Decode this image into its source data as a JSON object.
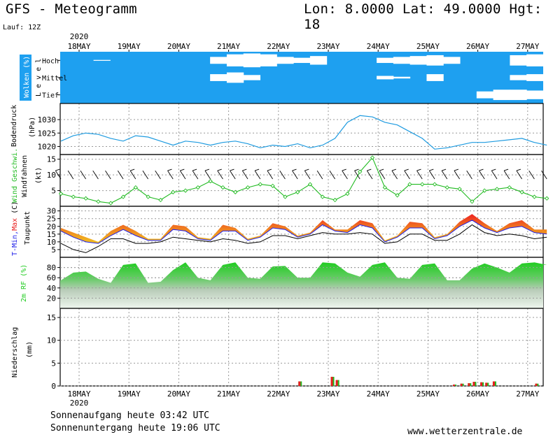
{
  "header": {
    "title": "GFS - Meteogramm",
    "coords": "Lon: 8.0000  Lat: 49.0000  Hgt: 18",
    "run": "Lauf: 12Z",
    "year_top": "2020",
    "year_bottom": "2020"
  },
  "footer": {
    "sunrise": "Sonnenaufgang heute 03:42 UTC",
    "sunset": "Sonnenuntergang heute 19:06 UTC",
    "source": "www.wetterzentrale.de"
  },
  "colors": {
    "cloud": "#1ea0f0",
    "pressure": "#1e9be0",
    "wind": "#22bb22",
    "tmax_red": "#e81e1e",
    "tmin_blue": "#1e1ee8",
    "rh_green": "#22cc22"
  },
  "chart_data": [
    {
      "type": "area",
      "id": "clouds",
      "ylabel_parts": [
        "Wolken (%)",
        "L e v e l"
      ],
      "level_labels": [
        "Hoch",
        "Mittel",
        "Tief"
      ],
      "x_tick_labels": [
        "18MAY",
        "19MAY",
        "20MAY",
        "21MAY",
        "22MAY",
        "23MAY",
        "24MAY",
        "25MAY",
        "26MAY",
        "27MAY"
      ],
      "levels": [
        "high",
        "mid",
        "low"
      ],
      "note": "",
      "cover_high": [
        100,
        100,
        95,
        100,
        100,
        100,
        100,
        100,
        100,
        60,
        30,
        20,
        30,
        60,
        70,
        50,
        100,
        100,
        100,
        70,
        60,
        50,
        40,
        60,
        100,
        100,
        100,
        40,
        30
      ],
      "cover_mid": [
        100,
        100,
        100,
        100,
        100,
        100,
        100,
        100,
        100,
        60,
        40,
        70,
        100,
        100,
        100,
        100,
        100,
        100,
        100,
        80,
        90,
        100,
        60,
        100,
        100,
        100,
        100,
        70,
        60
      ],
      "cover_low": [
        100,
        100,
        100,
        100,
        100,
        100,
        100,
        100,
        100,
        100,
        100,
        100,
        100,
        100,
        100,
        100,
        100,
        100,
        100,
        100,
        100,
        100,
        100,
        100,
        100,
        60,
        40,
        40,
        50
      ]
    },
    {
      "type": "line",
      "id": "pressure",
      "ylabel_parts": [
        "Bodendruck",
        "(hPa)"
      ],
      "ylim": [
        1017,
        1036
      ],
      "yticks": [
        1020,
        1025,
        1030
      ],
      "x_days": [
        0,
        0.25,
        0.5,
        0.75,
        1,
        1.25,
        1.5,
        1.75,
        2,
        2.25,
        2.5,
        2.75,
        3,
        3.25,
        3.5,
        3.75,
        4,
        4.25,
        4.5,
        4.75,
        5,
        5.25,
        5.5,
        5.75,
        6,
        6.25,
        6.5,
        6.75,
        7,
        7.25,
        7.5,
        7.75,
        8,
        8.25,
        8.5,
        8.75,
        9,
        9.25,
        9.5,
        9.75
      ],
      "values": [
        1022,
        1024,
        1025,
        1024.5,
        1023,
        1022,
        1024,
        1023.5,
        1022,
        1020.5,
        1022,
        1021.5,
        1020.5,
        1021.5,
        1022,
        1021,
        1019.5,
        1020.5,
        1020,
        1021,
        1019.5,
        1020.5,
        1023,
        1029,
        1031.5,
        1031,
        1029,
        1028,
        1025.5,
        1023,
        1019,
        1019.5,
        1020.5,
        1021.5,
        1021.5,
        1022,
        1022.5,
        1023,
        1021.5,
        1020.5
      ]
    },
    {
      "type": "line",
      "id": "wind",
      "ylabel_parts": [
        "Wind Geschwi.",
        "Windfahnen",
        "(kt)"
      ],
      "ylim": [
        0,
        16.5
      ],
      "yticks": [
        5,
        10,
        15
      ],
      "x_days": [
        0,
        0.25,
        0.5,
        0.75,
        1,
        1.25,
        1.5,
        1.75,
        2,
        2.25,
        2.5,
        2.75,
        3,
        3.25,
        3.5,
        3.75,
        4,
        4.25,
        4.5,
        4.75,
        5,
        5.25,
        5.5,
        5.75,
        6,
        6.25,
        6.5,
        6.75,
        7,
        7.25,
        7.5,
        7.75,
        8,
        8.25,
        8.5,
        8.75,
        9,
        9.25,
        9.5,
        9.75
      ],
      "values": [
        4,
        3,
        2.5,
        1.5,
        1,
        3,
        6,
        3,
        2,
        4.5,
        5,
        6,
        8,
        6,
        4.5,
        6,
        7,
        6.5,
        3,
        4.5,
        7,
        3,
        2,
        4,
        11,
        15.5,
        6,
        3.5,
        7,
        7,
        7,
        6,
        5.5,
        1.5,
        5,
        5.5,
        6,
        4.5,
        3,
        2.5
      ],
      "barb_direction": "W/SW"
    },
    {
      "type": "area",
      "id": "temperature",
      "ylabel_parts": [
        "T-Min,",
        "Max",
        "(C)"
      ],
      "ylabel_line2": "Taupunkt",
      "ylim": [
        0,
        33
      ],
      "yticks": [
        5,
        10,
        15,
        20,
        25,
        30
      ],
      "x_days": [
        0,
        0.25,
        0.5,
        0.75,
        1,
        1.25,
        1.5,
        1.75,
        2,
        2.25,
        2.5,
        2.75,
        3,
        3.25,
        3.5,
        3.75,
        4,
        4.25,
        4.5,
        4.75,
        5,
        5.25,
        5.5,
        5.75,
        6,
        6.25,
        6.5,
        6.75,
        7,
        7.25,
        7.5,
        7.75,
        8,
        8.25,
        8.5,
        8.75,
        9,
        9.25,
        9.5,
        9.75
      ],
      "tmax": [
        19,
        16,
        13,
        10,
        17,
        21,
        17,
        12,
        12,
        21,
        20,
        13,
        12,
        21,
        19,
        12,
        14,
        22,
        20,
        14,
        16,
        24,
        18,
        18,
        24,
        22,
        11,
        14,
        23,
        22,
        13,
        15,
        23,
        28,
        22,
        17,
        22,
        24,
        18,
        18
      ],
      "tmin": [
        17,
        13,
        10,
        9,
        14,
        18,
        14,
        11,
        11,
        18,
        17,
        12,
        11,
        17,
        17,
        11,
        13,
        19,
        18,
        13,
        15,
        21,
        17,
        16,
        21,
        19,
        10,
        13,
        19,
        19,
        12,
        14,
        20,
        24,
        19,
        16,
        19,
        20,
        16,
        15
      ],
      "dewpoint": [
        9,
        5,
        3,
        7,
        12,
        12,
        9,
        9,
        10,
        13,
        12,
        11,
        10,
        12,
        11,
        9,
        10,
        14,
        14,
        12,
        14,
        16,
        15,
        15,
        16,
        15,
        9,
        10,
        15,
        15,
        11,
        11,
        15,
        21,
        16,
        14,
        15,
        14,
        12,
        13
      ]
    },
    {
      "type": "area",
      "id": "humidity",
      "ylabel_parts": [
        "2m RF (%)"
      ],
      "ylim": [
        0,
        100
      ],
      "yticks": [
        20,
        40,
        60,
        80
      ],
      "x_days": [
        0,
        0.25,
        0.5,
        0.75,
        1,
        1.25,
        1.5,
        1.75,
        2,
        2.25,
        2.5,
        2.75,
        3,
        3.25,
        3.5,
        3.75,
        4,
        4.25,
        4.5,
        4.75,
        5,
        5.25,
        5.5,
        5.75,
        6,
        6.25,
        6.5,
        6.75,
        7,
        7.25,
        7.5,
        7.75,
        8,
        8.25,
        8.5,
        8.75,
        9,
        9.25,
        9.5,
        9.75
      ],
      "values": [
        55,
        70,
        72,
        58,
        50,
        85,
        88,
        50,
        52,
        75,
        90,
        60,
        55,
        85,
        90,
        60,
        58,
        82,
        83,
        60,
        60,
        90,
        88,
        70,
        62,
        85,
        90,
        60,
        58,
        85,
        88,
        55,
        55,
        78,
        88,
        80,
        70,
        88,
        90,
        85
      ]
    },
    {
      "type": "bar",
      "id": "precip",
      "ylabel_parts": [
        "Niederschlag",
        "(mm)"
      ],
      "ylim": [
        0,
        17
      ],
      "yticks": [
        0,
        5,
        10,
        15
      ],
      "bars": [
        {
          "day": 4.8,
          "conv": 1.0,
          "total": 1.0
        },
        {
          "day": 5.45,
          "conv": 2.0,
          "total": 2.0
        },
        {
          "day": 5.55,
          "conv": 1.3,
          "total": 1.3
        },
        {
          "day": 7.9,
          "conv": 0.3,
          "total": 0.3
        },
        {
          "day": 8.05,
          "conv": 0.5,
          "total": 0.5
        },
        {
          "day": 8.2,
          "conv": 0.6,
          "total": 0.6
        },
        {
          "day": 8.3,
          "conv": 0.9,
          "total": 0.9
        },
        {
          "day": 8.45,
          "conv": 0.8,
          "total": 0.8
        },
        {
          "day": 8.55,
          "conv": 0.7,
          "total": 0.7
        },
        {
          "day": 8.7,
          "conv": 1.0,
          "total": 1.0
        },
        {
          "day": 9.55,
          "conv": 0.5,
          "total": 0.5
        }
      ]
    }
  ]
}
